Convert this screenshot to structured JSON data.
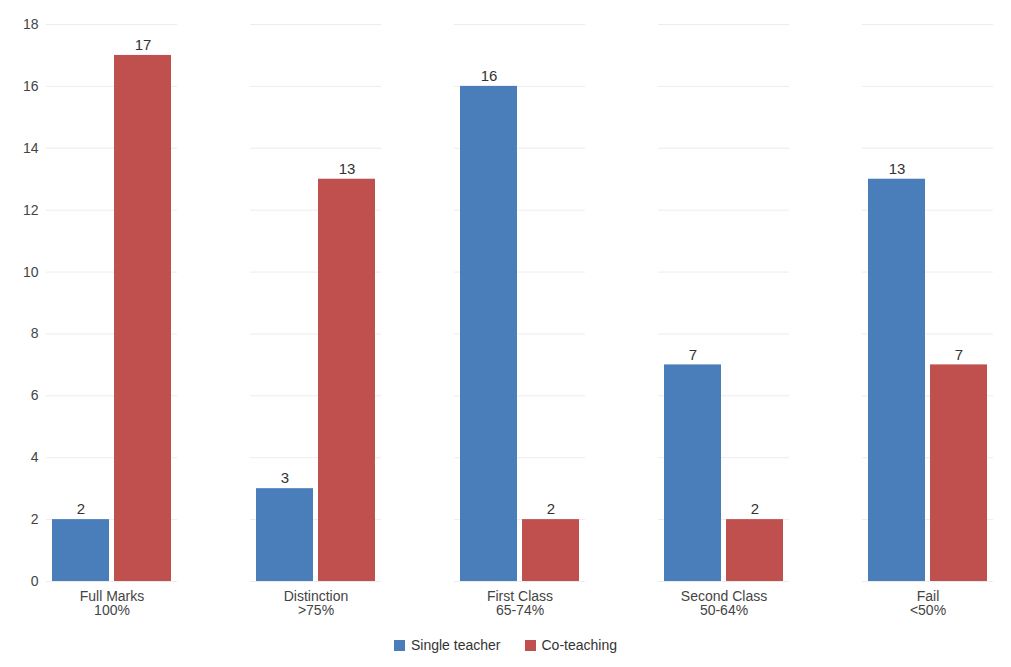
{
  "chart_data": {
    "type": "bar",
    "categories": [
      "Full Marks\n100%",
      "Distinction\n>75%",
      "First Class\n65-74%",
      "Second Class\n50-64%",
      "Fail\n<50%"
    ],
    "series": [
      {
        "name": "Single teacher",
        "color": "#4a7ebb",
        "values": [
          2,
          3,
          16,
          7,
          13
        ]
      },
      {
        "name": "Co-teaching",
        "color": "#c0504d",
        "values": [
          17,
          13,
          2,
          2,
          7
        ]
      }
    ],
    "ylim": [
      0,
      18
    ],
    "yticks": [
      0,
      2,
      4,
      6,
      8,
      10,
      12,
      14,
      16,
      18
    ],
    "grid": true,
    "data_labels": true,
    "legend": "bottom"
  }
}
